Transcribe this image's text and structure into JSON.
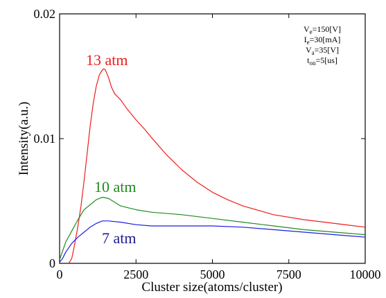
{
  "chart_data": {
    "type": "line",
    "title": "",
    "xlabel": "Cluster size(atoms/cluster)",
    "ylabel": "Intensity(a.u.)",
    "xlim": [
      0,
      10000
    ],
    "ylim": [
      0,
      0.02
    ],
    "xticks": [
      0,
      2500,
      5000,
      7500,
      10000
    ],
    "xtick_labels": [
      "0",
      "2500",
      "5000",
      "7500",
      "10000"
    ],
    "yticks": [
      0,
      0.01,
      0.02
    ],
    "ytick_labels": [
      "0",
      "0.01",
      "0.02"
    ],
    "grid": false,
    "annotation": [
      {
        "main": "V",
        "sub": "e",
        "rest": "=150[V]"
      },
      {
        "main": "I",
        "sub": "e",
        "rest": "=30[mA]"
      },
      {
        "main": "V",
        "sub": "a",
        "rest": "=35[V]"
      },
      {
        "main": "t",
        "sub": "on",
        "rest": "=5[us]"
      }
    ],
    "series": [
      {
        "name": "13 atm",
        "color": "#ee1c1c",
        "x": [
          300,
          400,
          500,
          600,
          700,
          800,
          900,
          1000,
          1100,
          1200,
          1300,
          1400,
          1450,
          1500,
          1600,
          1700,
          1800,
          2000,
          2200,
          2500,
          2800,
          3000,
          3500,
          4000,
          4500,
          5000,
          5500,
          6000,
          7000,
          8000,
          9000,
          10000
        ],
        "y": [
          0,
          0.0004,
          0.0016,
          0.003,
          0.0046,
          0.0066,
          0.0088,
          0.011,
          0.0128,
          0.0142,
          0.0151,
          0.0155,
          0.0156,
          0.0155,
          0.0149,
          0.0141,
          0.0136,
          0.0131,
          0.0124,
          0.0115,
          0.0107,
          0.0101,
          0.0087,
          0.0075,
          0.0065,
          0.0057,
          0.0051,
          0.0046,
          0.0039,
          0.0035,
          0.0032,
          0.0029
        ]
      },
      {
        "name": "10 atm",
        "color": "#1f8a1f",
        "x": [
          0,
          100,
          200,
          400,
          600,
          800,
          1000,
          1200,
          1400,
          1600,
          1800,
          2000,
          2500,
          3000,
          4000,
          5000,
          6000,
          7000,
          8000,
          9000,
          10000
        ],
        "y": [
          0.0003,
          0.001,
          0.0017,
          0.0026,
          0.0035,
          0.0043,
          0.0047,
          0.0051,
          0.0053,
          0.0052,
          0.0049,
          0.0046,
          0.0043,
          0.0041,
          0.0039,
          0.0036,
          0.0033,
          0.003,
          0.0027,
          0.0025,
          0.0023
        ]
      },
      {
        "name": "7 atm",
        "color": "#1c1ce6",
        "x": [
          0,
          100,
          200,
          400,
          600,
          800,
          1000,
          1200,
          1400,
          1600,
          2000,
          2500,
          3000,
          4000,
          5000,
          6000,
          7000,
          8000,
          9000,
          10000
        ],
        "y": [
          0.0001,
          0.0004,
          0.0009,
          0.0016,
          0.0021,
          0.0025,
          0.0029,
          0.0032,
          0.0034,
          0.0034,
          0.0033,
          0.0031,
          0.003,
          0.003,
          0.003,
          0.0029,
          0.0027,
          0.0025,
          0.0023,
          0.0021
        ]
      }
    ]
  }
}
